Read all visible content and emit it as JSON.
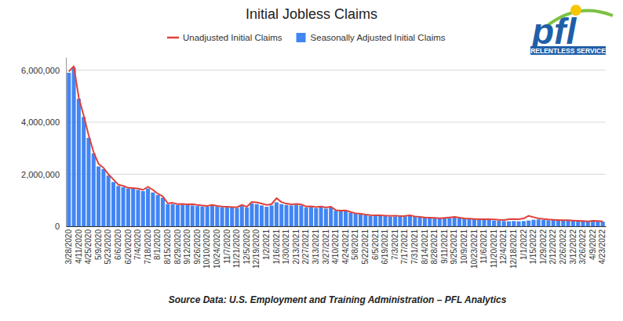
{
  "chart_data": {
    "type": "bar",
    "title": "Initial Jobless Claims",
    "source": "Source Data: U.S. Employment and Training Administration – PFL Analytics",
    "logo": {
      "text": "pfl",
      "tagline": "RELENTLESS SERVICE"
    },
    "categories": [
      "3/28/2020",
      null,
      "4/11/2020",
      null,
      "4/25/2020",
      null,
      "5/9/2020",
      null,
      "5/23/2020",
      null,
      "6/6/2020",
      null,
      "6/20/2020",
      null,
      "7/4/2020",
      null,
      "7/18/2020",
      null,
      "8/1/2020",
      null,
      "8/15/2020",
      null,
      "8/29/2020",
      null,
      "9/12/2020",
      null,
      "9/26/2020",
      null,
      "10/10/2020",
      null,
      "10/24/2020",
      null,
      "11/7/2020",
      null,
      "11/21/2020",
      null,
      "12/5/2020",
      null,
      "12/19/2020",
      null,
      "1/2/2021",
      null,
      "1/16/2021",
      null,
      "1/30/2021",
      null,
      "2/13/2021",
      null,
      "2/27/2021",
      null,
      "3/13/2021",
      null,
      "3/27/2021",
      null,
      "4/10/2021",
      null,
      "4/24/2021",
      null,
      "5/8/2021",
      null,
      "5/22/2021",
      null,
      "6/5/2021",
      null,
      "6/19/2021",
      null,
      "7/3/2021",
      null,
      "7/17/2021",
      null,
      "7/31/2021",
      null,
      "8/14/2021",
      null,
      "8/28/2021",
      null,
      "9/11/2021",
      null,
      "9/25/2021",
      null,
      "10/9/2021",
      null,
      "10/23/2021",
      null,
      "11/6/2021",
      null,
      "11/20/2021",
      null,
      "12/4/2021",
      null,
      "12/18/2021",
      null,
      "1/1/2022",
      null,
      "1/15/2022",
      null,
      "1/29/2022",
      null,
      "2/12/2022",
      null,
      "2/26/2022",
      null,
      "3/12/2022",
      null,
      "3/26/2022",
      null,
      "4/9/2022",
      null,
      "4/23/2022"
    ],
    "series": [
      {
        "name": "Unadjusted Initial Claims",
        "type": "line",
        "color": "#e0403a",
        "values": [
          5950000,
          6150000,
          4950000,
          4250000,
          3500000,
          2850000,
          2400000,
          2250000,
          2000000,
          1800000,
          1600000,
          1550000,
          1480000,
          1470000,
          1450000,
          1400000,
          1520000,
          1400000,
          1250000,
          1150000,
          880000,
          900000,
          850000,
          860000,
          840000,
          850000,
          820000,
          800000,
          780000,
          820000,
          780000,
          760000,
          750000,
          740000,
          730000,
          820000,
          750000,
          930000,
          920000,
          870000,
          820000,
          850000,
          1080000,
          930000,
          870000,
          840000,
          860000,
          840000,
          760000,
          770000,
          740000,
          760000,
          720000,
          750000,
          620000,
          600000,
          610000,
          550000,
          500000,
          480000,
          450000,
          430000,
          420000,
          420000,
          410000,
          400000,
          410000,
          390000,
          400000,
          420000,
          380000,
          360000,
          340000,
          330000,
          320000,
          310000,
          320000,
          340000,
          360000,
          330000,
          300000,
          290000,
          280000,
          270000,
          270000,
          270000,
          260000,
          250000,
          240000,
          270000,
          280000,
          270000,
          300000,
          400000,
          350000,
          300000,
          280000,
          260000,
          250000,
          240000,
          230000,
          230000,
          220000,
          210000,
          200000,
          190000,
          210000,
          200000,
          190000
        ]
      },
      {
        "name": "Seasonally Adjusted Initial Claims",
        "type": "bar",
        "color": "#4285f4",
        "values": [
          5900000,
          6100000,
          4900000,
          4200000,
          3400000,
          2800000,
          2300000,
          2200000,
          1950000,
          1700000,
          1550000,
          1500000,
          1450000,
          1450000,
          1400000,
          1350000,
          1450000,
          1300000,
          1200000,
          1100000,
          850000,
          850000,
          820000,
          830000,
          820000,
          800000,
          780000,
          760000,
          750000,
          780000,
          750000,
          730000,
          720000,
          720000,
          700000,
          780000,
          720000,
          880000,
          850000,
          800000,
          750000,
          800000,
          920000,
          850000,
          820000,
          800000,
          830000,
          800000,
          720000,
          740000,
          700000,
          730000,
          680000,
          730000,
          600000,
          580000,
          580000,
          520000,
          480000,
          450000,
          430000,
          400000,
          390000,
          400000,
          390000,
          370000,
          380000,
          370000,
          380000,
          400000,
          370000,
          350000,
          330000,
          320000,
          310000,
          300000,
          310000,
          320000,
          330000,
          310000,
          290000,
          280000,
          270000,
          260000,
          260000,
          250000,
          220000,
          210000,
          200000,
          190000,
          200000,
          190000,
          200000,
          220000,
          250000,
          260000,
          240000,
          230000,
          240000,
          230000,
          220000,
          220000,
          210000,
          200000,
          190000,
          180000,
          200000,
          190000,
          180000
        ]
      }
    ],
    "ylim": [
      0,
      6500000
    ],
    "yticks": [
      0,
      {
        "value": 2000000,
        "label": "2,000,000"
      },
      {
        "value": 4000000,
        "label": "4,000,000"
      },
      {
        "value": 6000000,
        "label": "6,000,000"
      }
    ],
    "grid": true,
    "legend": "top"
  }
}
